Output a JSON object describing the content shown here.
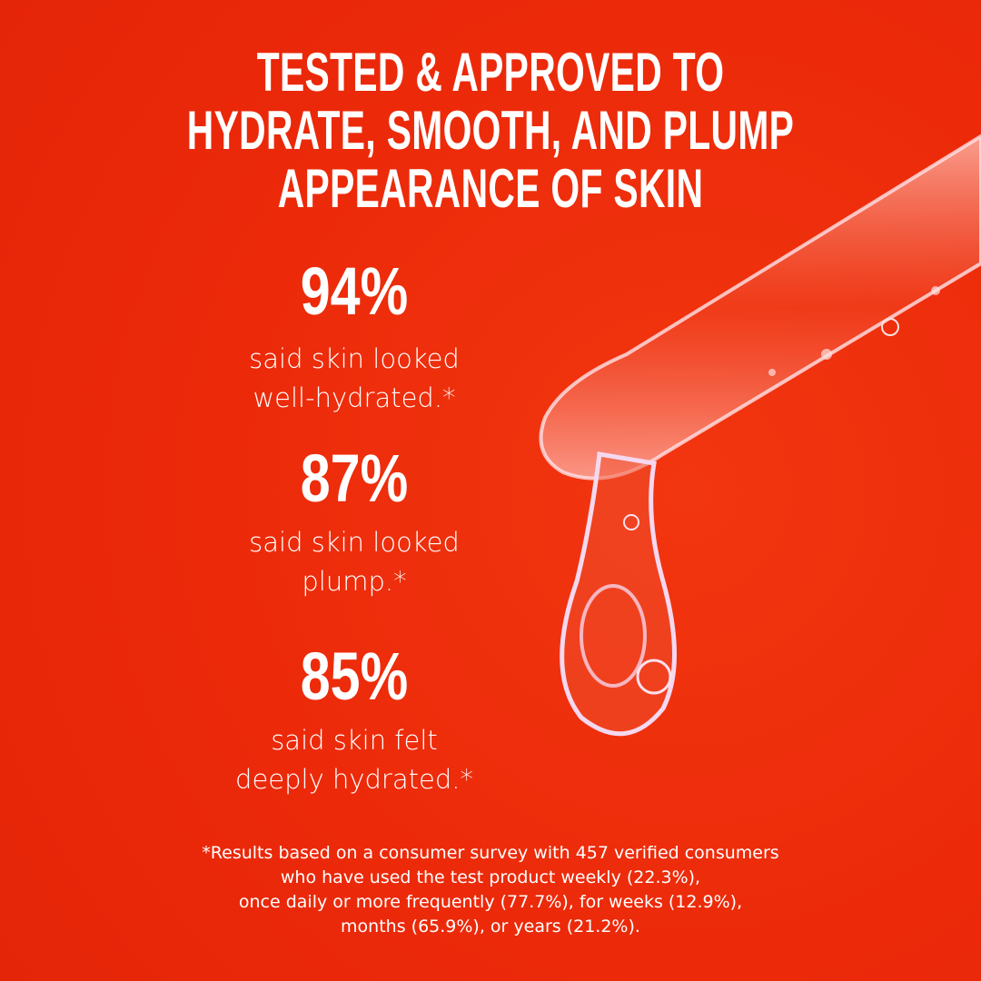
{
  "headline": [
    "TESTED & APPROVED TO",
    "HYDRATE, SMOOTH, AND PLUMP",
    "APPEARANCE OF SKIN"
  ],
  "stats": [
    {
      "value": "94%",
      "lines": [
        "said skin looked",
        "well-hydrated.*"
      ]
    },
    {
      "value": "87%",
      "lines": [
        "said skin looked",
        "plump.*"
      ]
    },
    {
      "value": "85%",
      "lines": [
        "said skin felt",
        "deeply hydrated.*"
      ]
    }
  ],
  "footnote": [
    "*Results based on a consumer survey with 457 verified consumers",
    "who have used the test product weekly (22.3%),",
    "once daily or more frequently (77.7%), for weeks (12.9%),",
    "months (65.9%), or years (21.2%)."
  ],
  "colors": {
    "background": "#ec2a0a",
    "text": "#ffffff"
  },
  "image": "serum-dropper-with-drop"
}
